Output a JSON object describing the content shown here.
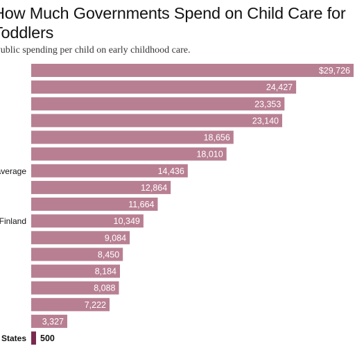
{
  "title": "How Much Governments Spend on Child Care for Toddlers",
  "subtitle": "Public spending per child on early childhood care.",
  "chart_data": {
    "type": "bar",
    "orientation": "horizontal",
    "categories": [
      "",
      "",
      "",
      "",
      "",
      "",
      "O.E.C.D. average",
      "",
      "",
      "Finland",
      "",
      "",
      "",
      "",
      "",
      "",
      "United States"
    ],
    "values": [
      29726,
      24427,
      23353,
      23140,
      18656,
      18010,
      14436,
      12864,
      11664,
      10349,
      9084,
      8450,
      8184,
      8088,
      7222,
      3327,
      500
    ],
    "value_labels": [
      "$29,726",
      "24,427",
      "23,353",
      "23,140",
      "18,656",
      "18,010",
      "14,436",
      "12,864",
      "11,664",
      "10,349",
      "9,084",
      "8,450",
      "8,184",
      "8,088",
      "7,222",
      "3,327",
      "500"
    ],
    "highlight_index": 16,
    "bar_color": "#b87f93",
    "highlight_color": "#7a2a4f",
    "xlim": [
      0,
      29726
    ],
    "grid": false,
    "legend": "none"
  }
}
